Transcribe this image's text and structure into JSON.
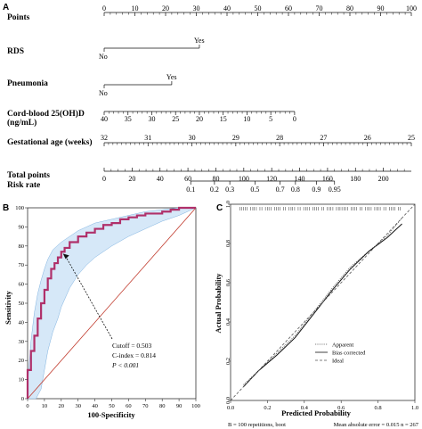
{
  "chart_data": [
    {
      "type": "nomogram",
      "panel_label": "A",
      "rows": [
        {
          "name": "Points",
          "ticks": [
            "0",
            "10",
            "20",
            "30",
            "40",
            "50",
            "60",
            "70",
            "80",
            "90",
            "100"
          ],
          "values": [
            0,
            10,
            20,
            30,
            40,
            50,
            60,
            70,
            80,
            90,
            100
          ]
        },
        {
          "name": "RDS",
          "levels": [
            {
              "label": "No",
              "points": 0
            },
            {
              "label": "Yes",
              "points": 31
            }
          ]
        },
        {
          "name": "Pneumonia",
          "levels": [
            {
              "label": "No",
              "points": 0
            },
            {
              "label": "Yes",
              "points": 22
            }
          ]
        },
        {
          "name": "Cord-blood 25(OH)D",
          "name2": "(ng/mL)",
          "ticks": [
            "40",
            "35",
            "30",
            "25",
            "20",
            "15",
            "10",
            "5",
            "0"
          ],
          "values": [
            40,
            35,
            30,
            25,
            20,
            15,
            10,
            5,
            0
          ],
          "points_max": 62
        },
        {
          "name": "Gestational age (weeks)",
          "ticks": [
            "32",
            "31",
            "30",
            "29",
            "28",
            "27",
            "26",
            "25"
          ],
          "values": [
            32,
            31,
            30,
            29,
            28,
            27,
            26,
            25
          ],
          "points_max": 100
        },
        {
          "name": "Total points",
          "ticks": [
            "0",
            "20",
            "40",
            "60",
            "80",
            "100",
            "120",
            "140",
            "160",
            "180",
            "200"
          ],
          "values": [
            0,
            20,
            40,
            60,
            80,
            100,
            120,
            140,
            160,
            180,
            200
          ],
          "max": 220
        },
        {
          "name": "Risk rate",
          "ticks": [
            "0.1",
            "0.2",
            "0.3",
            "0.5",
            "0.7",
            "0.8",
            "0.9",
            "0.95"
          ],
          "values": [
            0.1,
            0.2,
            0.3,
            0.5,
            0.7,
            0.8,
            0.9,
            0.95
          ],
          "total_points_at": [
            62,
            79,
            90,
            108,
            126,
            137,
            152,
            165
          ]
        }
      ]
    },
    {
      "type": "line",
      "panel_label": "B",
      "xlabel": "100-Specificity",
      "ylabel": "Sensitivity",
      "xlim": [
        0,
        100
      ],
      "ylim": [
        0,
        100
      ],
      "ticks": [
        "0",
        "10",
        "20",
        "30",
        "40",
        "50",
        "60",
        "70",
        "80",
        "90",
        "100"
      ],
      "roc": [
        [
          0,
          0
        ],
        [
          0,
          5
        ],
        [
          2,
          15
        ],
        [
          4,
          25
        ],
        [
          6,
          33
        ],
        [
          8,
          42
        ],
        [
          10,
          50
        ],
        [
          12,
          57
        ],
        [
          14,
          63
        ],
        [
          16,
          68
        ],
        [
          18,
          71
        ],
        [
          20,
          74
        ],
        [
          22,
          77
        ],
        [
          25,
          79
        ],
        [
          30,
          82
        ],
        [
          35,
          85
        ],
        [
          40,
          87
        ],
        [
          45,
          89
        ],
        [
          50,
          91
        ],
        [
          55,
          92
        ],
        [
          60,
          94
        ],
        [
          65,
          95
        ],
        [
          70,
          96
        ],
        [
          75,
          97
        ],
        [
          80,
          97
        ],
        [
          85,
          98
        ],
        [
          90,
          99
        ],
        [
          95,
          100
        ],
        [
          100,
          100
        ]
      ],
      "ci_upper": [
        [
          0,
          8
        ],
        [
          2,
          30
        ],
        [
          4,
          45
        ],
        [
          6,
          55
        ],
        [
          8,
          62
        ],
        [
          10,
          68
        ],
        [
          12,
          73
        ],
        [
          15,
          78
        ],
        [
          20,
          82
        ],
        [
          25,
          85
        ],
        [
          30,
          88
        ],
        [
          35,
          90
        ],
        [
          40,
          92
        ],
        [
          50,
          94
        ],
        [
          60,
          96
        ],
        [
          70,
          98
        ],
        [
          80,
          99
        ],
        [
          90,
          100
        ],
        [
          100,
          100
        ]
      ],
      "ci_lower": [
        [
          0,
          0
        ],
        [
          5,
          0
        ],
        [
          8,
          5
        ],
        [
          10,
          15
        ],
        [
          12,
          25
        ],
        [
          15,
          35
        ],
        [
          18,
          42
        ],
        [
          20,
          48
        ],
        [
          25,
          58
        ],
        [
          30,
          65
        ],
        [
          35,
          70
        ],
        [
          40,
          74
        ],
        [
          50,
          80
        ],
        [
          60,
          85
        ],
        [
          70,
          89
        ],
        [
          80,
          93
        ],
        [
          90,
          96
        ],
        [
          100,
          100
        ]
      ],
      "cutoff_point": [
        21,
        76
      ],
      "annotations": {
        "cutoff": "Cutoff = 0.503",
        "cindex": "C-index = 0.814",
        "p": "P < 0.001"
      }
    },
    {
      "type": "line",
      "panel_label": "C",
      "xlabel": "Predicted Probability",
      "ylabel": "Actual Probability",
      "xlim": [
        0,
        1
      ],
      "ylim": [
        0,
        1
      ],
      "ticks": [
        "0.0",
        "0.2",
        "0.4",
        "0.6",
        "0.8",
        "1.0"
      ],
      "legend_position": "bottom-right",
      "series": [
        {
          "name": "Apparent",
          "style": "dotted",
          "values": [
            [
              0.07,
              0.08
            ],
            [
              0.15,
              0.15
            ],
            [
              0.25,
              0.24
            ],
            [
              0.35,
              0.33
            ],
            [
              0.45,
              0.45
            ],
            [
              0.55,
              0.57
            ],
            [
              0.65,
              0.68
            ],
            [
              0.75,
              0.76
            ],
            [
              0.85,
              0.84
            ],
            [
              0.93,
              0.93
            ]
          ]
        },
        {
          "name": "Bias corrected",
          "style": "solid",
          "values": [
            [
              0.07,
              0.07
            ],
            [
              0.15,
              0.15
            ],
            [
              0.25,
              0.23
            ],
            [
              0.35,
              0.32
            ],
            [
              0.45,
              0.44
            ],
            [
              0.55,
              0.56
            ],
            [
              0.65,
              0.67
            ],
            [
              0.75,
              0.76
            ],
            [
              0.85,
              0.83
            ],
            [
              0.93,
              0.9
            ]
          ]
        },
        {
          "name": "Ideal",
          "style": "dashed",
          "values": [
            [
              0,
              0
            ],
            [
              1,
              1
            ]
          ]
        }
      ],
      "footer_left": "B = 100 repetitions, boot",
      "footer_right": "Mean absolute error = 0.015 n = 267"
    }
  ]
}
